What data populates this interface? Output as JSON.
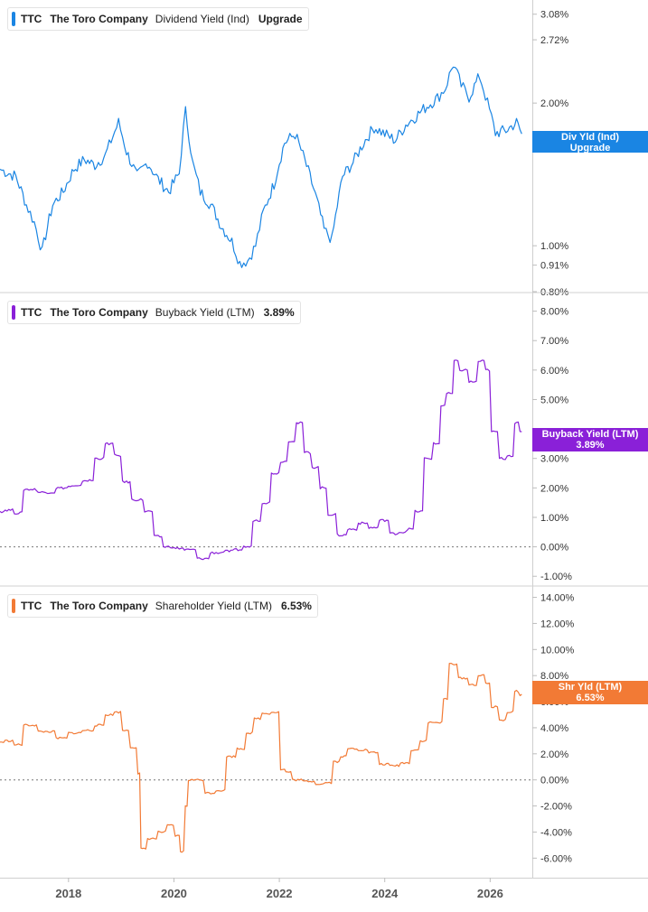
{
  "chart_data": [
    {
      "type": "line",
      "ticker": "TTC",
      "company": "The Toro Company",
      "metric": "Dividend Yield (Ind)",
      "current_value": "Upgrade",
      "flag_lines": [
        "Div Yld (Ind)",
        "Upgrade"
      ],
      "color": "#1a85e3",
      "scale": "log",
      "ylim": [
        0.8,
        3.3
      ],
      "yticks": [
        {
          "value": 3.08,
          "label": "3.08%"
        },
        {
          "value": 2.72,
          "label": "2.72%"
        },
        {
          "value": 2.0,
          "label": "2.00%"
        },
        {
          "value": 1.0,
          "label": "1.00%"
        },
        {
          "value": 0.91,
          "label": "0.91%"
        },
        {
          "value": 0.8,
          "label": "0.80%"
        }
      ],
      "flag_value": 1.72,
      "series": [
        {
          "x": [
            2016.7,
            2017.0,
            2017.2,
            2017.35,
            2017.5,
            2017.7,
            2017.9,
            2018.1,
            2018.3,
            2018.5,
            2018.7,
            2018.95,
            2019.1,
            2019.3,
            2019.5,
            2019.7,
            2019.9,
            2020.1,
            2020.22,
            2020.35,
            2020.5,
            2020.7,
            2020.9,
            2021.1,
            2021.25,
            2021.4,
            2021.55,
            2021.7,
            2021.9,
            2022.1,
            2022.3,
            2022.45,
            2022.65,
            2022.85,
            2023.0,
            2023.2,
            2023.4,
            2023.6,
            2023.8,
            2024.0,
            2024.2,
            2024.4,
            2024.6,
            2024.8,
            2025.0,
            2025.15,
            2025.3,
            2025.45,
            2025.6,
            2025.8,
            2025.95,
            2026.1,
            2026.3,
            2026.5,
            2026.6
          ],
          "y": [
            1.45,
            1.4,
            1.22,
            1.12,
            0.97,
            1.22,
            1.3,
            1.45,
            1.52,
            1.48,
            1.55,
            1.82,
            1.58,
            1.4,
            1.5,
            1.38,
            1.3,
            1.42,
            1.92,
            1.5,
            1.3,
            1.22,
            1.1,
            1.02,
            0.92,
            0.93,
            1.0,
            1.18,
            1.35,
            1.65,
            1.72,
            1.55,
            1.32,
            1.08,
            1.03,
            1.4,
            1.5,
            1.65,
            1.78,
            1.72,
            1.67,
            1.8,
            1.88,
            1.97,
            2.05,
            2.15,
            2.42,
            2.18,
            2.06,
            2.28,
            2.0,
            1.73,
            1.75,
            1.82,
            1.72
          ]
        }
      ]
    },
    {
      "type": "line",
      "ticker": "TTC",
      "company": "The Toro Company",
      "metric": "Buyback Yield (LTM)",
      "current_value": "3.89%",
      "flag_lines": [
        "Buyback Yield (LTM)",
        "3.89%"
      ],
      "color": "#8a20d8",
      "ylim": [
        -1.3,
        8.6
      ],
      "yticks": [
        {
          "value": 8,
          "label": "8.00%"
        },
        {
          "value": 7,
          "label": "7.00%"
        },
        {
          "value": 6,
          "label": "6.00%"
        },
        {
          "value": 5,
          "label": "5.00%"
        },
        {
          "value": 3,
          "label": "3.00%"
        },
        {
          "value": 2,
          "label": "2.00%"
        },
        {
          "value": 1,
          "label": "1.00%"
        },
        {
          "value": 0,
          "label": "0.00%"
        },
        {
          "value": -1,
          "label": "-1.00%"
        }
      ],
      "flag_value": 3.89,
      "series": [
        {
          "x": [
            2016.7,
            2016.9,
            2017.05,
            2017.25,
            2017.6,
            2017.9,
            2018.1,
            2018.4,
            2018.6,
            2018.8,
            2018.95,
            2019.1,
            2019.3,
            2019.55,
            2019.7,
            2019.9,
            2020.1,
            2020.3,
            2020.55,
            2020.8,
            2021.05,
            2021.25,
            2021.4,
            2021.6,
            2021.75,
            2021.95,
            2022.1,
            2022.25,
            2022.4,
            2022.55,
            2022.7,
            2022.85,
            2023.0,
            2023.2,
            2023.4,
            2023.6,
            2023.8,
            2024.0,
            2024.2,
            2024.35,
            2024.5,
            2024.65,
            2024.85,
            2025.0,
            2025.1,
            2025.25,
            2025.35,
            2025.5,
            2025.7,
            2025.85,
            2025.95,
            2026.1,
            2026.25,
            2026.4,
            2026.5,
            2026.6
          ],
          "y": [
            1.2,
            1.25,
            1.15,
            1.95,
            1.85,
            2.0,
            2.05,
            2.25,
            3.0,
            3.5,
            3.1,
            2.2,
            1.6,
            1.2,
            0.35,
            0.0,
            -0.05,
            -0.1,
            -0.4,
            -0.2,
            -0.15,
            -0.1,
            0.0,
            0.9,
            1.5,
            2.5,
            2.9,
            3.6,
            4.2,
            3.2,
            2.7,
            2.0,
            1.1,
            0.4,
            0.6,
            0.8,
            0.65,
            0.9,
            0.45,
            0.5,
            0.6,
            1.2,
            3.0,
            3.5,
            4.8,
            5.2,
            6.3,
            6.0,
            5.6,
            6.3,
            6.0,
            3.9,
            3.0,
            3.1,
            4.2,
            3.89
          ]
        }
      ]
    },
    {
      "type": "line",
      "ticker": "TTC",
      "company": "The Toro Company",
      "metric": "Shareholder Yield (LTM)",
      "current_value": "6.53%",
      "flag_lines": [
        "Shr Yld (LTM)",
        "6.53%"
      ],
      "color": "#f27a35",
      "ylim": [
        -7.5,
        14.8
      ],
      "yticks": [
        {
          "value": 14,
          "label": "14.00%"
        },
        {
          "value": 12,
          "label": "12.00%"
        },
        {
          "value": 10,
          "label": "10.00%"
        },
        {
          "value": 8,
          "label": "8.00%"
        },
        {
          "value": 6,
          "label": "6.00%"
        },
        {
          "value": 4,
          "label": "4.00%"
        },
        {
          "value": 2,
          "label": "2.00%"
        },
        {
          "value": 0,
          "label": "0.00%"
        },
        {
          "value": -2,
          "label": "-2.00%"
        },
        {
          "value": -4,
          "label": "-4.00%"
        },
        {
          "value": -6,
          "label": "-6.00%"
        }
      ],
      "flag_value": 6.53,
      "series": [
        {
          "x": [
            2016.7,
            2016.9,
            2017.05,
            2017.25,
            2017.6,
            2017.9,
            2018.1,
            2018.4,
            2018.6,
            2018.8,
            2018.95,
            2019.1,
            2019.25,
            2019.35,
            2019.4,
            2019.6,
            2019.8,
            2019.95,
            2020.1,
            2020.15,
            2020.25,
            2020.3,
            2020.45,
            2020.7,
            2020.9,
            2021.1,
            2021.3,
            2021.45,
            2021.6,
            2021.75,
            2021.95,
            2022.1,
            2022.15,
            2022.35,
            2022.55,
            2022.8,
            2022.95,
            2023.1,
            2023.2,
            2023.4,
            2023.6,
            2023.8,
            2024.0,
            2024.2,
            2024.4,
            2024.6,
            2024.75,
            2024.9,
            2025.05,
            2025.15,
            2025.3,
            2025.5,
            2025.7,
            2025.85,
            2025.95,
            2026.1,
            2026.25,
            2026.4,
            2026.5,
            2026.6
          ],
          "y": [
            2.9,
            3.0,
            2.7,
            4.2,
            3.7,
            3.2,
            3.6,
            3.8,
            4.2,
            5.0,
            5.2,
            3.8,
            2.5,
            0.5,
            -5.3,
            -4.5,
            -4.0,
            -3.5,
            -4.3,
            -5.5,
            -2.0,
            0.0,
            0.0,
            -1.0,
            -0.8,
            1.8,
            2.4,
            3.6,
            4.7,
            5.1,
            5.2,
            0.8,
            0.6,
            0.0,
            -0.1,
            -0.3,
            -0.2,
            1.4,
            1.8,
            2.4,
            2.3,
            2.1,
            1.2,
            1.1,
            1.3,
            2.3,
            3.0,
            4.4,
            4.4,
            6.2,
            8.9,
            7.8,
            7.3,
            8.0,
            7.4,
            5.6,
            4.6,
            5.2,
            6.8,
            6.53
          ]
        }
      ]
    }
  ],
  "x_axis": {
    "range": [
      2016.7,
      2026.8
    ],
    "ticks": [
      {
        "value": 2018,
        "label": "2018"
      },
      {
        "value": 2020,
        "label": "2020"
      },
      {
        "value": 2022,
        "label": "2022"
      },
      {
        "value": 2024,
        "label": "2024"
      },
      {
        "value": 2026,
        "label": "2026"
      }
    ]
  }
}
